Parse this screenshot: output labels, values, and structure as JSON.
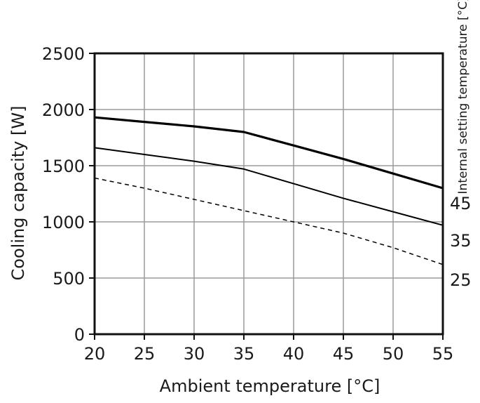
{
  "chart_data": {
    "type": "line",
    "title": "",
    "xlabel": "Ambient temperature [°C]",
    "ylabel": "Cooling capacity [W]",
    "right_label": "Internal setting temperature [°C]",
    "xlim": [
      20,
      55
    ],
    "ylim": [
      0,
      2500
    ],
    "x_ticks": [
      20,
      25,
      30,
      35,
      40,
      45,
      50,
      55
    ],
    "y_ticks": [
      0,
      500,
      1000,
      1500,
      2000,
      2500
    ],
    "grid": true,
    "series": [
      {
        "name": "45",
        "style": "thick",
        "color": "#000000",
        "x": [
          20,
          25,
          30,
          35,
          40,
          45,
          50,
          55
        ],
        "values": [
          1930,
          1890,
          1850,
          1800,
          1680,
          1560,
          1430,
          1300
        ]
      },
      {
        "name": "35",
        "style": "solid",
        "color": "#000000",
        "x": [
          20,
          25,
          30,
          35,
          40,
          45,
          50,
          55
        ],
        "values": [
          1660,
          1600,
          1540,
          1470,
          1340,
          1210,
          1090,
          970
        ]
      },
      {
        "name": "25",
        "style": "dashed",
        "color": "#000000",
        "x": [
          20,
          25,
          30,
          35,
          40,
          45,
          50,
          55
        ],
        "values": [
          1390,
          1300,
          1200,
          1100,
          1000,
          900,
          770,
          620
        ]
      }
    ]
  }
}
